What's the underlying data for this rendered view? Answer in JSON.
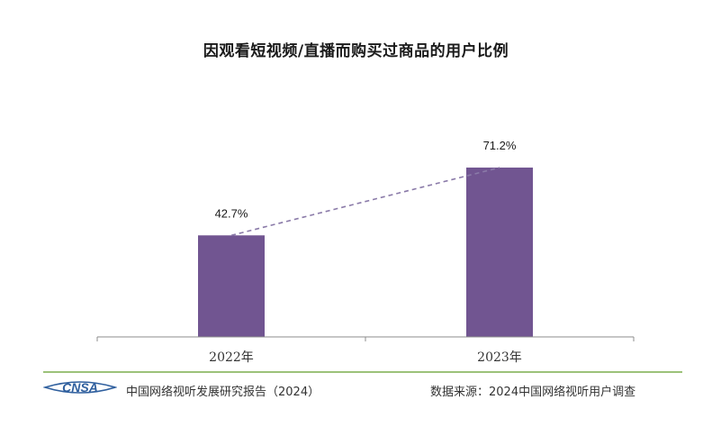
{
  "chart_data": {
    "type": "bar",
    "title": "因观看短视频/直播而购买过商品的用户比例",
    "categories": [
      "2022年",
      "2023年"
    ],
    "values": [
      42.7,
      71.2
    ],
    "data_labels": [
      "42.7%",
      "71.2%"
    ],
    "ylim": [
      0,
      100
    ],
    "grid": false,
    "legend": "none",
    "trend_line": "dashed",
    "bar_color": "#715591",
    "trend_line_color": "#8a7aa8"
  },
  "footer": {
    "logo_text": "CNSA",
    "report_name": "中国网络视听发展研究报告（2024）",
    "source": "数据来源：2024中国网络视听用户调查"
  },
  "colors": {
    "logo_fill": "#2f5f9e",
    "footer_rule": "#9cc27a",
    "axis": "#8c8c8c"
  }
}
